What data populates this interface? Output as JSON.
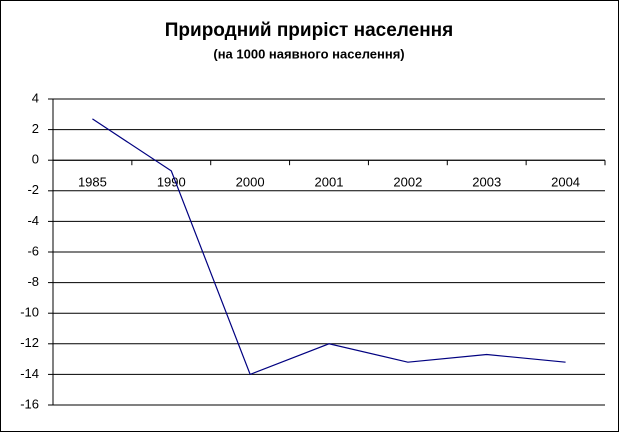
{
  "chart_data": {
    "type": "line",
    "title": "Природний приріст населення",
    "subtitle": "(на 1000 наявного населення)",
    "categories": [
      "1985",
      "1990",
      "2000",
      "2001",
      "2002",
      "2003",
      "2004"
    ],
    "series": [
      {
        "color": "#000080",
        "values": [
          2.7,
          -0.7,
          -14,
          -12,
          -13.2,
          -12.7,
          -13.2
        ]
      }
    ],
    "ylim": [
      -16,
      4
    ],
    "yticks": [
      -16,
      -14,
      -12,
      -10,
      -8,
      -6,
      -4,
      -2,
      0,
      2,
      4
    ],
    "grid": true
  }
}
